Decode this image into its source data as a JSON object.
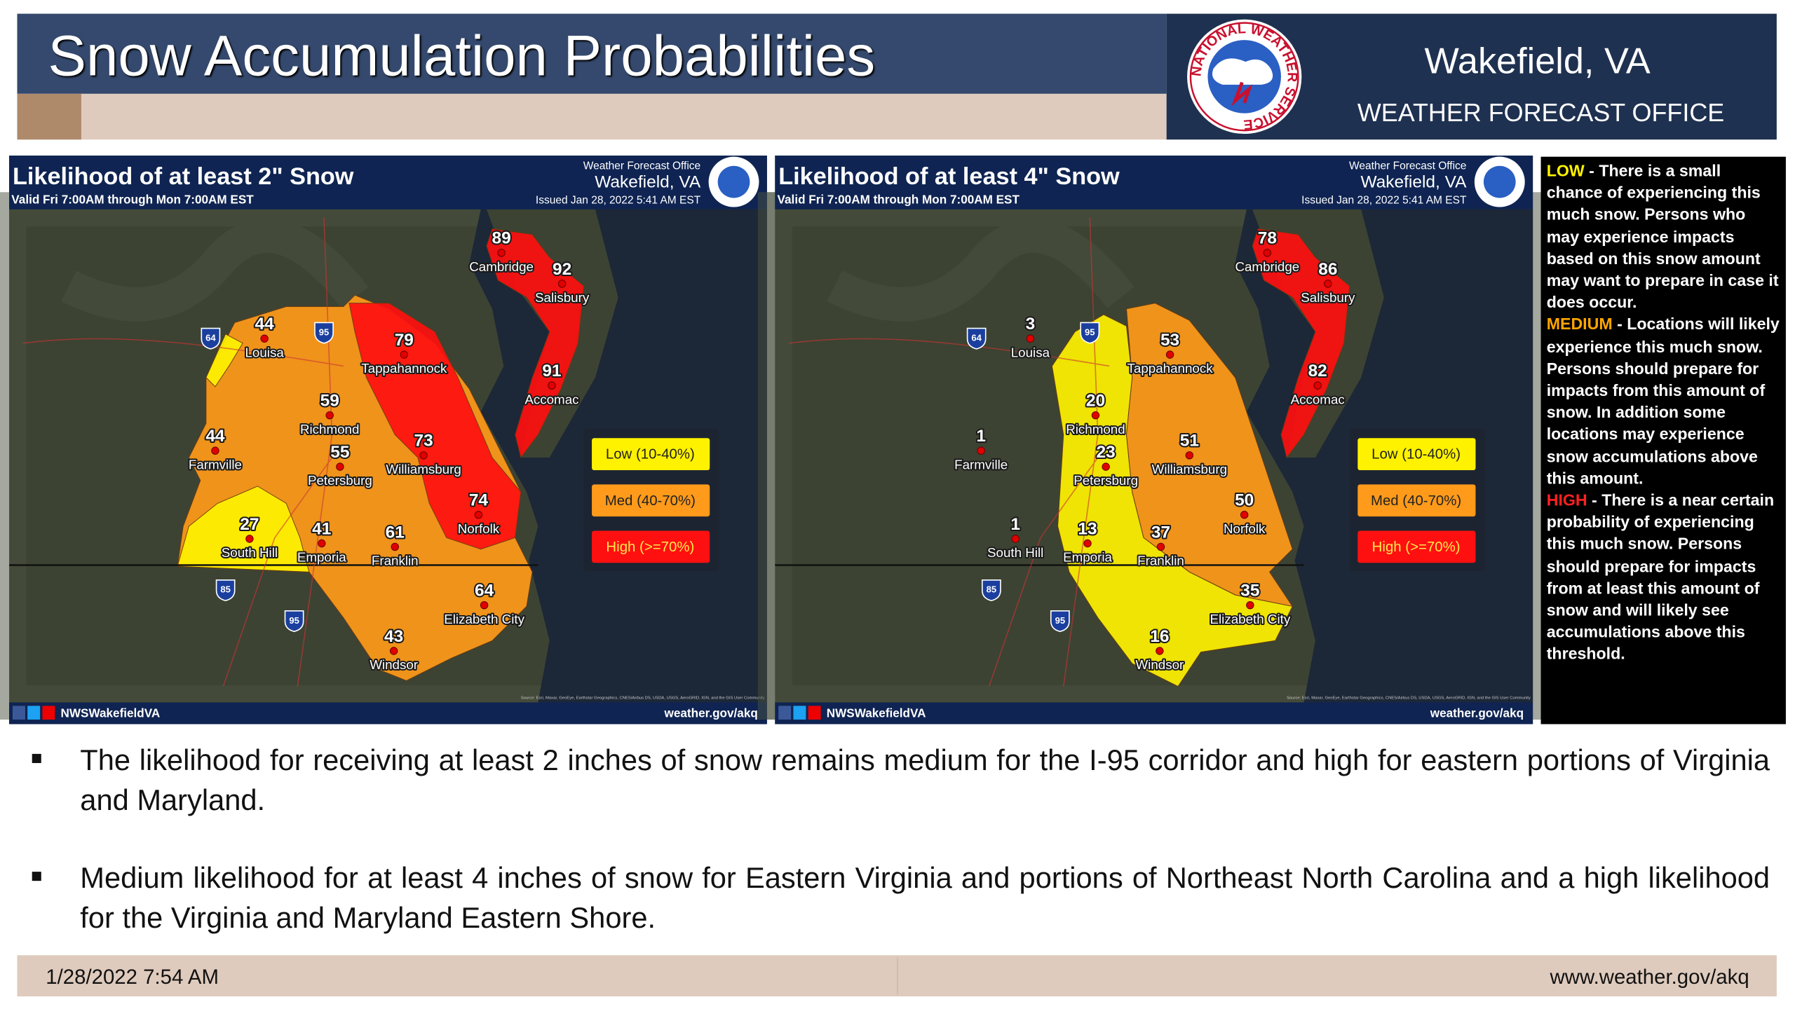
{
  "header": {
    "title": "Snow Accumulation Probabilities",
    "office_name": "Wakefield, VA",
    "office_type": "WEATHER FORECAST OFFICE",
    "logo_text": "NATIONAL WEATHER SERVICE"
  },
  "maps": [
    {
      "title": "Likelihood of at least 2\" Snow",
      "valid": "Valid Fri 7:00AM through Mon 7:00AM EST",
      "office_label": "Weather Forecast Office",
      "office": "Wakefield, VA",
      "issued": "Issued Jan 28, 2022 5:41 AM EST",
      "social": "NWSWakefieldVA",
      "url": "weather.gov/akq",
      "source": "Source: Esri, Maxar, GeoEye, Earthstar Geographics, CNES/Airbus DS, USDA, USGS, AeroGRID, IGN, and the GIS User Community",
      "shields": [
        "64",
        "95",
        "85",
        "95"
      ],
      "legend": [
        "Low (10-40%)",
        "Med (40-70%)",
        "High (>=70%)"
      ],
      "cities": [
        {
          "name": "Cambridge",
          "value": 89
        },
        {
          "name": "Salisbury",
          "value": 92
        },
        {
          "name": "Louisa",
          "value": 44
        },
        {
          "name": "Tappahannock",
          "value": 79
        },
        {
          "name": "Richmond",
          "value": 59
        },
        {
          "name": "Petersburg",
          "value": 55
        },
        {
          "name": "Farmville",
          "value": 44
        },
        {
          "name": "Williamsburg",
          "value": 73
        },
        {
          "name": "Accomac",
          "value": 91
        },
        {
          "name": "Norfolk",
          "value": 74
        },
        {
          "name": "South Hill",
          "value": 27
        },
        {
          "name": "Emporia",
          "value": 41
        },
        {
          "name": "Franklin",
          "value": 61
        },
        {
          "name": "Elizabeth City",
          "value": 64
        },
        {
          "name": "Windsor",
          "value": 43
        }
      ]
    },
    {
      "title": "Likelihood of at least 4\" Snow",
      "valid": "Valid Fri 7:00AM through Mon 7:00AM EST",
      "office_label": "Weather Forecast Office",
      "office": "Wakefield, VA",
      "issued": "Issued Jan 28, 2022 5:41 AM EST",
      "social": "NWSWakefieldVA",
      "url": "weather.gov/akq",
      "source": "Source: Esri, Maxar, GeoEye, Earthstar Geographics, CNES/Airbus DS, USDA, USGS, AeroGRID, IGN, and the GIS User Community",
      "shields": [
        "64",
        "95",
        "85",
        "95"
      ],
      "legend": [
        "Low (10-40%)",
        "Med (40-70%)",
        "High (>=70%)"
      ],
      "cities": [
        {
          "name": "Cambridge",
          "value": 78
        },
        {
          "name": "Salisbury",
          "value": 86
        },
        {
          "name": "Louisa",
          "value": 3
        },
        {
          "name": "Tappahannock",
          "value": 53
        },
        {
          "name": "Richmond",
          "value": 20
        },
        {
          "name": "Petersburg",
          "value": 23
        },
        {
          "name": "Farmville",
          "value": 1
        },
        {
          "name": "Williamsburg",
          "value": 51
        },
        {
          "name": "Accomac",
          "value": 82
        },
        {
          "name": "Norfolk",
          "value": 50
        },
        {
          "name": "South Hill",
          "value": 1
        },
        {
          "name": "Emporia",
          "value": 13
        },
        {
          "name": "Franklin",
          "value": 37
        },
        {
          "name": "Elizabeth City",
          "value": 35
        },
        {
          "name": "Windsor",
          "value": 16
        }
      ]
    }
  ],
  "key": [
    {
      "level": "LOW",
      "text": " - There is a small chance of experiencing this much snow. Persons who may experience impacts based on this snow amount may want to prepare in case it does occur."
    },
    {
      "level": "MEDIUM",
      "text": " - Locations will likely experience this much snow. Persons should prepare for impacts from this amount of snow. In addition some locations may experience snow accumulations above this amount."
    },
    {
      "level": "HIGH",
      "text": " - There is a near certain probability of experiencing this much snow. Persons should prepare for impacts from at least this amount of snow and will likely see accumulations above this threshold."
    }
  ],
  "bullets": [
    "The likelihood for receiving at least 2 inches of snow remains medium for the I-95 corridor and high for eastern portions of Virginia and Maryland.",
    "Medium likelihood for at least 4 inches of snow for Eastern Virginia and portions of Northeast North Carolina and a high likelihood for the Virginia and Maryland Eastern Shore."
  ],
  "footer": {
    "date": "1/28/2022 7:54 AM",
    "url": "www.weather.gov/akq"
  }
}
